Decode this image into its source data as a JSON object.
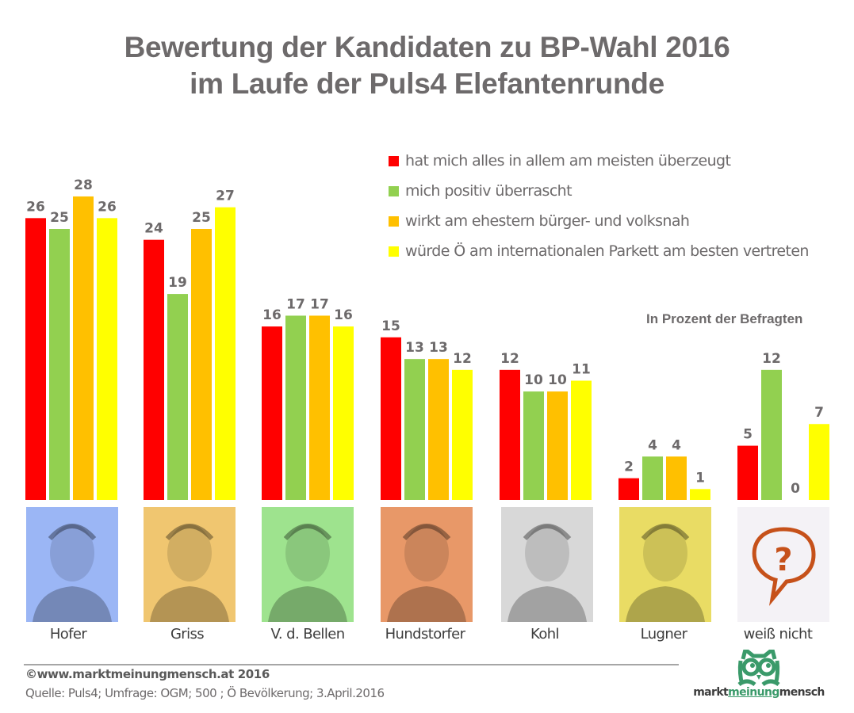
{
  "header": {
    "title_line1": "Bewertung der Kandidaten zu BP-Wahl 2016",
    "title_line2": "im Laufe der Puls4 Elefantenrunde"
  },
  "subnote": "In Prozent der Befragten",
  "candidates": [
    {
      "name": "Hofer",
      "photo_tint": "#9bb6f5",
      "icon": "portrait-hofer"
    },
    {
      "name": "Griss",
      "photo_tint": "#f0c670",
      "icon": "portrait-griss"
    },
    {
      "name": "V. d. Bellen",
      "photo_tint": "#9ee38e",
      "icon": "portrait-van-der-bellen"
    },
    {
      "name": "Hundstorfer",
      "photo_tint": "#e89868",
      "icon": "portrait-hundstorfer"
    },
    {
      "name": "Kohl",
      "photo_tint": "#d8d8d8",
      "icon": "portrait-kohl"
    },
    {
      "name": "Lugner",
      "photo_tint": "#e9dc64",
      "icon": "portrait-lugner"
    },
    {
      "name": "weiß nicht",
      "photo_tint": "#f4f2f6",
      "icon": "question-speech-bubble-icon"
    }
  ],
  "footer": {
    "copyright": "©www.marktmeinungmensch.at 2016",
    "source": "Quelle: Puls4; Umfrage: OGM; 500 ; Ö Bevölkerung; 3.April.2016",
    "logo_parts": [
      "markt",
      "meinung",
      "mensch"
    ]
  },
  "colors": {
    "red": "#ff0000",
    "green": "#92d050",
    "orange": "#ffc000",
    "yellow": "#ffff00",
    "text": "#6d6a6b",
    "logo_green": "#3a9a6a"
  },
  "chart_data": {
    "type": "bar",
    "title": "Bewertung der Kandidaten zu BP-Wahl 2016 im Laufe der Puls4 Elefantenrunde",
    "xlabel": "",
    "ylabel": "In Prozent der Befragten",
    "ylim": [
      0,
      28
    ],
    "grid": false,
    "legend_position": "top-right",
    "categories": [
      "Hofer",
      "Griss",
      "V. d. Bellen",
      "Hundstorfer",
      "Kohl",
      "Lugner",
      "weiß nicht"
    ],
    "series": [
      {
        "name": "hat mich alles in allem am meisten überzeugt",
        "color": "#ff0000",
        "values": [
          26,
          24,
          16,
          15,
          12,
          2,
          5
        ]
      },
      {
        "name": "mich positiv überrascht",
        "color": "#92d050",
        "values": [
          25,
          19,
          17,
          13,
          10,
          4,
          12
        ]
      },
      {
        "name": "wirkt am ehestern bürger- und volksnah",
        "color": "#ffc000",
        "values": [
          28,
          25,
          17,
          13,
          10,
          4,
          0
        ]
      },
      {
        "name": "würde Ö am internationalen Parkett am besten vertreten",
        "color": "#ffff00",
        "values": [
          26,
          27,
          16,
          12,
          11,
          1,
          7
        ]
      }
    ]
  }
}
